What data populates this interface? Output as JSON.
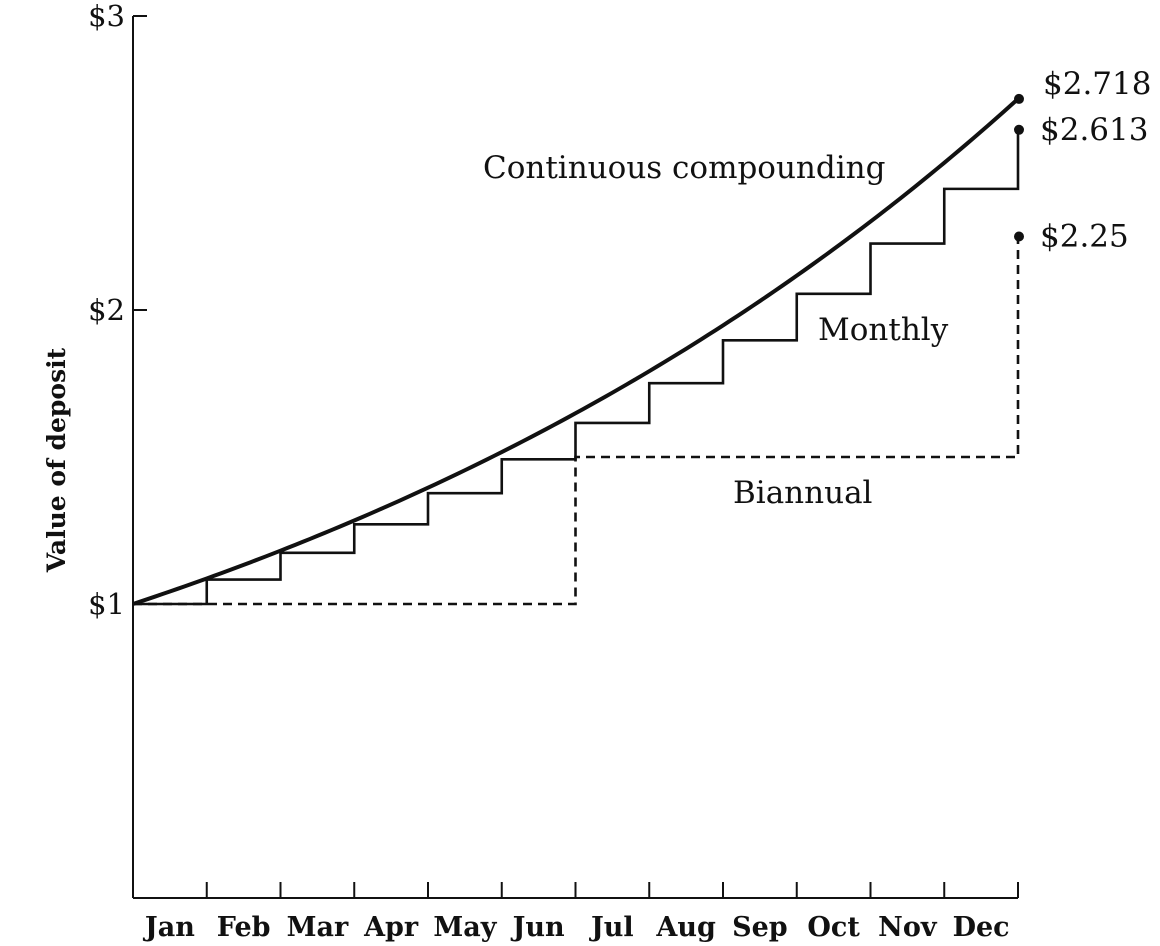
{
  "chart_data": {
    "type": "line",
    "title": "",
    "xlabel": "",
    "ylabel": "Value of deposit",
    "categories": [
      "Jan",
      "Feb",
      "Mar",
      "Apr",
      "May",
      "Jun",
      "Jul",
      "Aug",
      "Sep",
      "Oct",
      "Nov",
      "Dec"
    ],
    "yticks": [
      {
        "value": 1,
        "label": "$1"
      },
      {
        "value": 2,
        "label": "$2"
      },
      {
        "value": 3,
        "label": "$3"
      }
    ],
    "ylim": [
      0,
      3
    ],
    "xlim": [
      0,
      12
    ],
    "series": [
      {
        "name": "Continuous compounding",
        "style": "solid-thick",
        "kind": "curve",
        "start": 1,
        "end": 2.718,
        "end_label": "$2.718"
      },
      {
        "name": "Monthly",
        "style": "solid-step",
        "kind": "step",
        "steps": [
          1.0,
          1.083,
          1.174,
          1.271,
          1.377,
          1.492,
          1.616,
          1.751,
          1.897,
          2.055,
          2.226,
          2.412
        ],
        "end": 2.613,
        "end_label": "$2.613"
      },
      {
        "name": "Biannual",
        "style": "dashed-step",
        "kind": "step",
        "breaks": [
          0,
          6,
          12
        ],
        "steps": [
          1.0,
          1.5
        ],
        "end": 2.25,
        "end_label": "$2.25"
      }
    ],
    "grid": false,
    "legend": "inline labels"
  }
}
